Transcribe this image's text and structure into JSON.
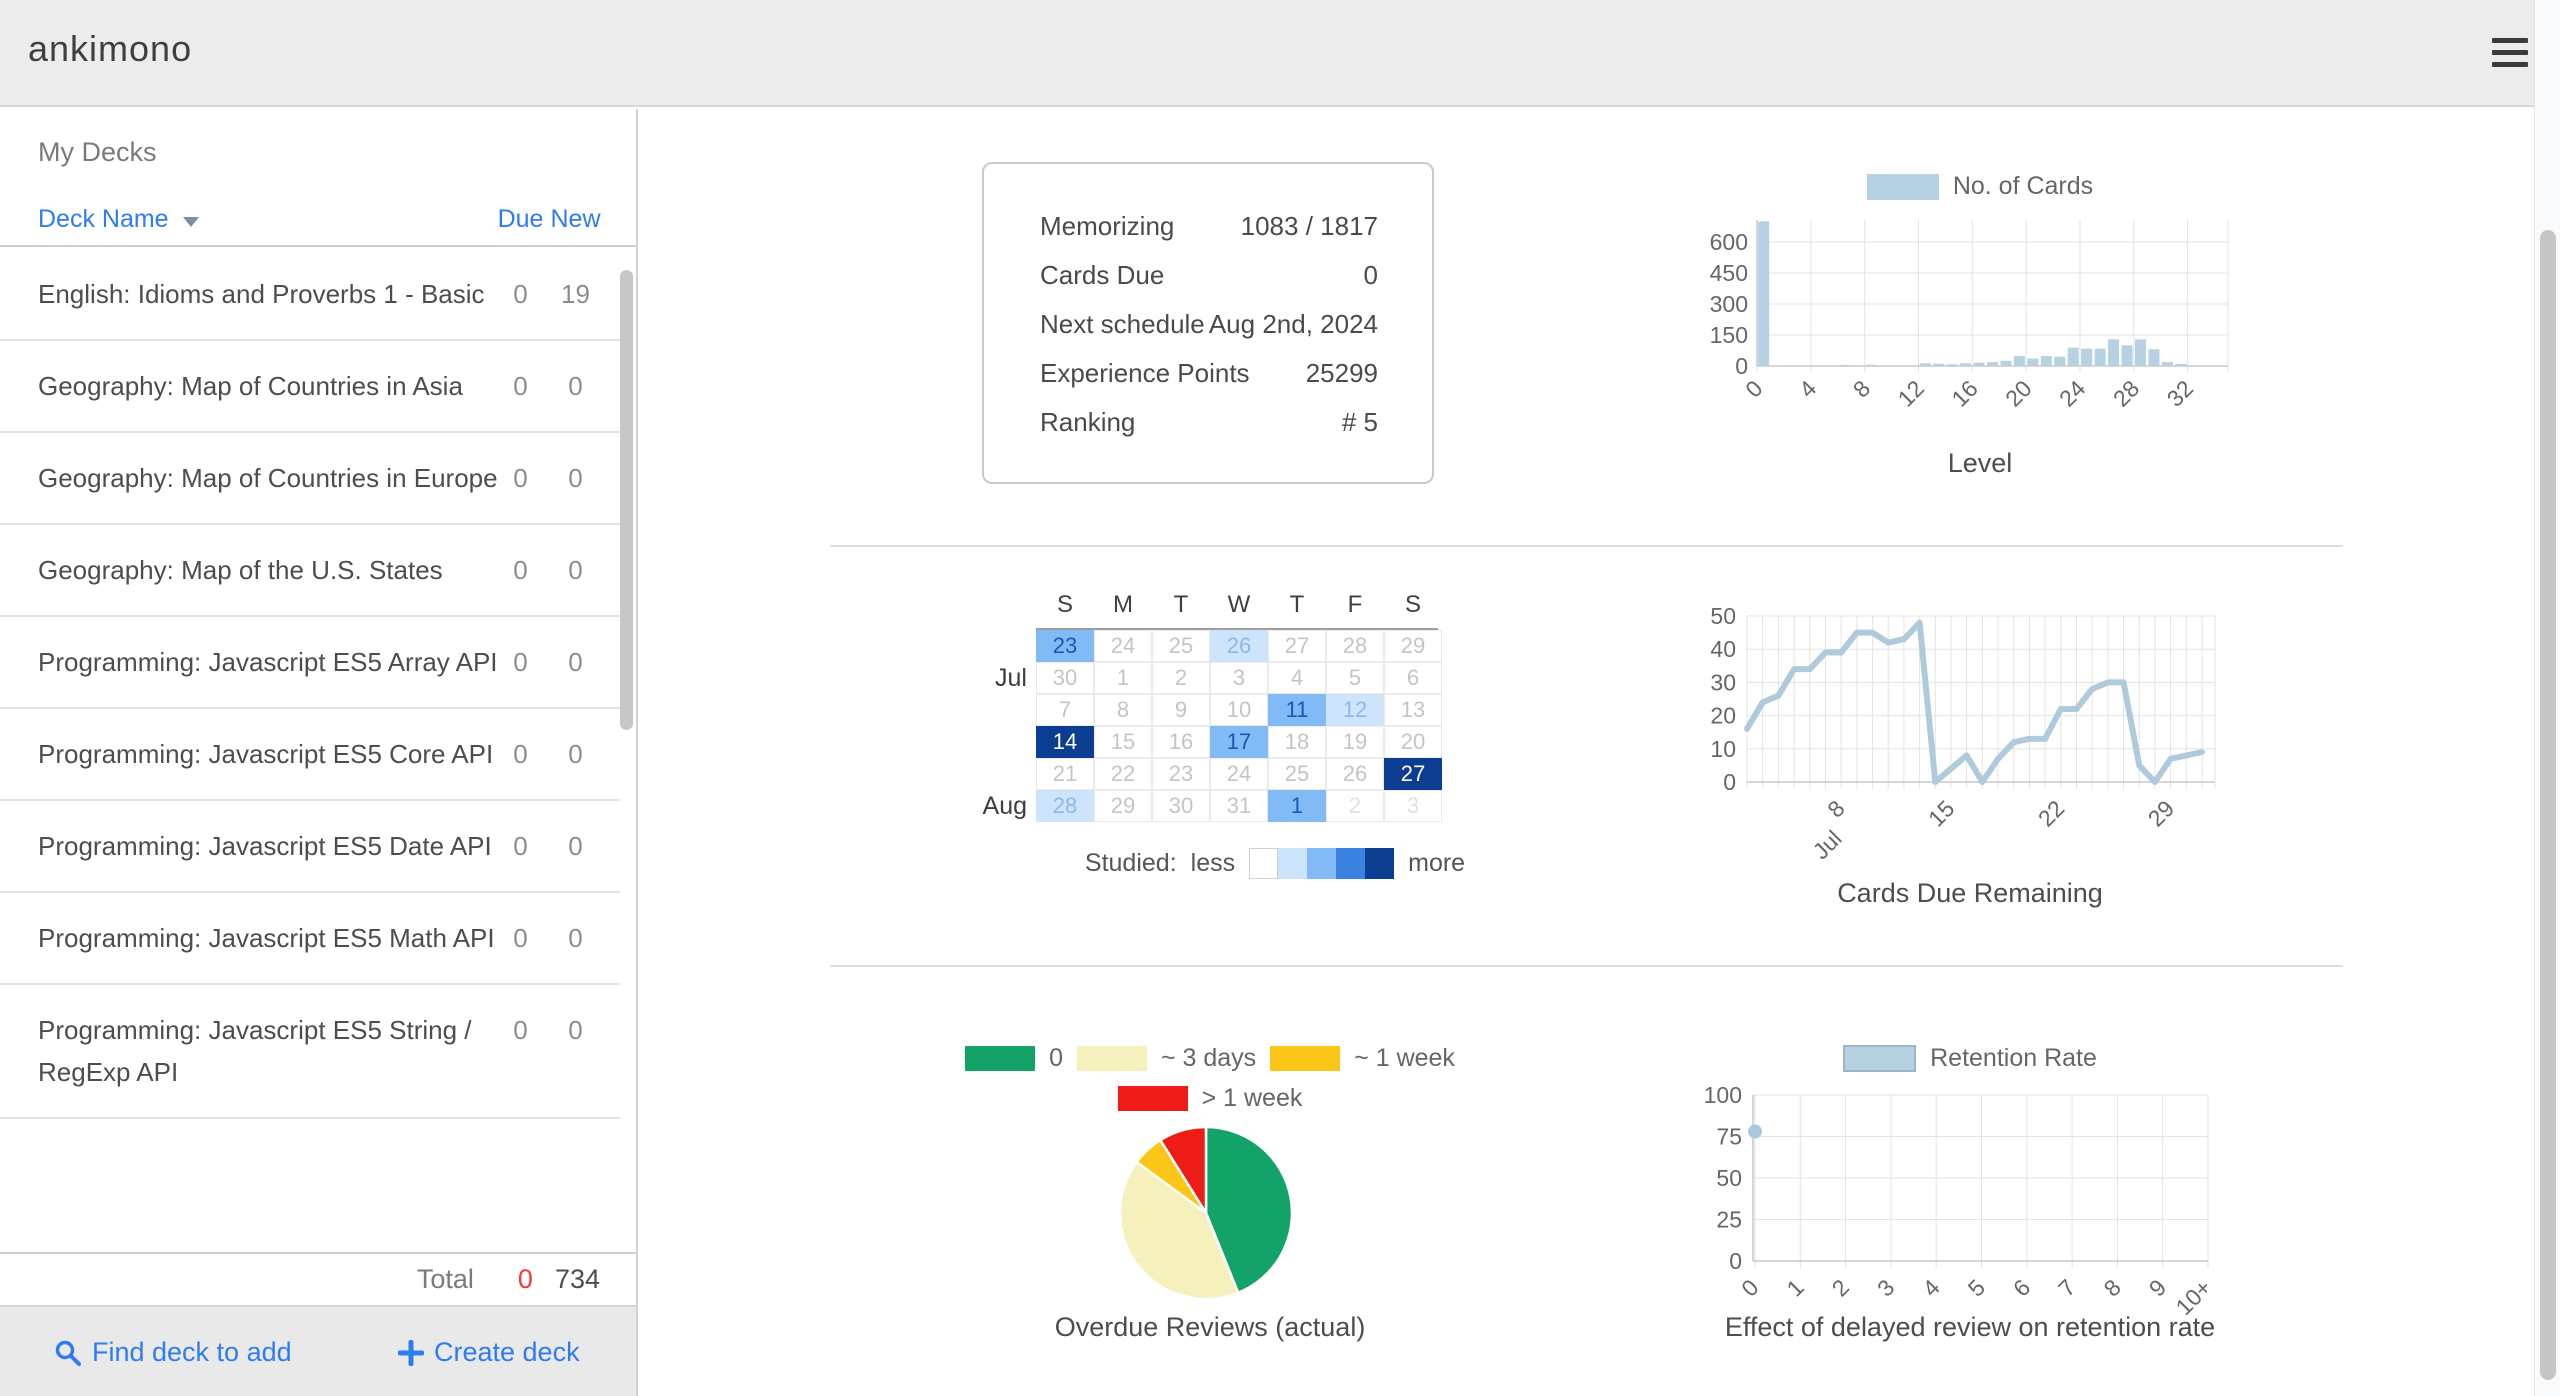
{
  "header": {
    "logo": "ankimono"
  },
  "sidebar": {
    "title": "My Decks",
    "sort_label": "Deck Name",
    "columns": {
      "due": "Due",
      "new": "New"
    },
    "decks": [
      {
        "name": "English: Idioms and Proverbs 1 - Basic",
        "due": "0",
        "new": "19"
      },
      {
        "name": "Geography: Map of Countries in Asia",
        "due": "0",
        "new": "0"
      },
      {
        "name": "Geography: Map of Countries in Europe",
        "due": "0",
        "new": "0"
      },
      {
        "name": "Geography: Map of the U.S. States",
        "due": "0",
        "new": "0"
      },
      {
        "name": "Programming: Javascript ES5 Array API",
        "due": "0",
        "new": "0"
      },
      {
        "name": "Programming: Javascript ES5 Core API",
        "due": "0",
        "new": "0"
      },
      {
        "name": "Programming: Javascript ES5 Date API",
        "due": "0",
        "new": "0"
      },
      {
        "name": "Programming: Javascript ES5 Math API",
        "due": "0",
        "new": "0"
      },
      {
        "name": "Programming: Javascript ES5 String / RegExp API",
        "due": "0",
        "new": "0"
      }
    ],
    "total": {
      "label": "Total",
      "due": "0",
      "new": "734"
    },
    "actions": {
      "find": "Find deck to add",
      "create": "Create deck"
    }
  },
  "stats": {
    "rows": [
      {
        "label": "Memorizing",
        "value": "1083 / 1817"
      },
      {
        "label": "Cards Due",
        "value": "0"
      },
      {
        "label": "Next schedule",
        "value": "Aug 2nd, 2024"
      },
      {
        "label": "Experience Points",
        "value": "25299"
      },
      {
        "label": "Ranking",
        "value": "# 5"
      }
    ]
  },
  "chart_data": [
    {
      "id": "cards_per_level",
      "type": "bar",
      "legend": "No. of Cards",
      "xlabel": "Level",
      "bar_color": "#b5d1e2",
      "x_ticks": [
        0,
        4,
        8,
        12,
        16,
        20,
        24,
        28,
        32
      ],
      "y_ticks": [
        0,
        150,
        300,
        450,
        600
      ],
      "ylim": [
        0,
        700
      ],
      "values": [
        700,
        0,
        0,
        0,
        0,
        0,
        5,
        0,
        6,
        0,
        0,
        3,
        13,
        11,
        8,
        13,
        16,
        19,
        25,
        48,
        36,
        48,
        45,
        89,
        84,
        84,
        129,
        100,
        129,
        81,
        19,
        10,
        0,
        3,
        2
      ]
    },
    {
      "id": "study_heatmap",
      "type": "heatmap",
      "day_headers": [
        "S",
        "M",
        "T",
        "W",
        "T",
        "F",
        "S"
      ],
      "month_labels": [
        {
          "text": "Jul",
          "row": 1
        },
        {
          "text": "Aug",
          "row": 5
        }
      ],
      "weeks": [
        [
          {
            "d": "23",
            "lvl": 2
          },
          {
            "d": "24",
            "lvl": 0
          },
          {
            "d": "25",
            "lvl": 0
          },
          {
            "d": "26",
            "lvl": 1
          },
          {
            "d": "27",
            "lvl": 0
          },
          {
            "d": "28",
            "lvl": 0
          },
          {
            "d": "29",
            "lvl": 0
          }
        ],
        [
          {
            "d": "30",
            "lvl": 0
          },
          {
            "d": "1",
            "lvl": 0
          },
          {
            "d": "2",
            "lvl": 0
          },
          {
            "d": "3",
            "lvl": 0
          },
          {
            "d": "4",
            "lvl": 0
          },
          {
            "d": "5",
            "lvl": 0
          },
          {
            "d": "6",
            "lvl": 0
          }
        ],
        [
          {
            "d": "7",
            "lvl": 0
          },
          {
            "d": "8",
            "lvl": 0
          },
          {
            "d": "9",
            "lvl": 0
          },
          {
            "d": "10",
            "lvl": 0
          },
          {
            "d": "11",
            "lvl": 2
          },
          {
            "d": "12",
            "lvl": 1
          },
          {
            "d": "13",
            "lvl": 0
          }
        ],
        [
          {
            "d": "14",
            "lvl": 4
          },
          {
            "d": "15",
            "lvl": 0
          },
          {
            "d": "16",
            "lvl": 0
          },
          {
            "d": "17",
            "lvl": 2
          },
          {
            "d": "18",
            "lvl": 0
          },
          {
            "d": "19",
            "lvl": 0
          },
          {
            "d": "20",
            "lvl": 0
          }
        ],
        [
          {
            "d": "21",
            "lvl": 0
          },
          {
            "d": "22",
            "lvl": 0
          },
          {
            "d": "23",
            "lvl": 0
          },
          {
            "d": "24",
            "lvl": 0
          },
          {
            "d": "25",
            "lvl": 0
          },
          {
            "d": "26",
            "lvl": 0
          },
          {
            "d": "27",
            "lvl": 4
          }
        ],
        [
          {
            "d": "28",
            "lvl": 1
          },
          {
            "d": "29",
            "lvl": 0
          },
          {
            "d": "30",
            "lvl": 0
          },
          {
            "d": "31",
            "lvl": 0
          },
          {
            "d": "1",
            "lvl": 2
          },
          {
            "d": "2",
            "lvl": 0,
            "dim": true
          },
          {
            "d": "3",
            "lvl": 0,
            "dim": true
          }
        ]
      ],
      "legend": {
        "label": "Studied:",
        "less": "less",
        "more": "more",
        "colors": [
          "#ffffff",
          "#cde4fb",
          "#82baf5",
          "#3b82e0",
          "#0b3d91"
        ]
      }
    },
    {
      "id": "cards_due_remaining",
      "type": "line",
      "title": "Cards Due Remaining",
      "color": "#aecadb",
      "month_label": "Jul",
      "x_start_day": 2,
      "x_ticks": [
        8,
        15,
        22,
        29
      ],
      "y_ticks": [
        0,
        10,
        20,
        30,
        40,
        50
      ],
      "ylim": [
        0,
        50
      ],
      "values": [
        16,
        24,
        26,
        34,
        34,
        39,
        39,
        45,
        45,
        42,
        43,
        48,
        0,
        4,
        8,
        0,
        7,
        12,
        13,
        13,
        22,
        22,
        28,
        30,
        30,
        5,
        0,
        7,
        8,
        9
      ]
    },
    {
      "id": "overdue_reviews",
      "type": "pie",
      "title": "Overdue Reviews (actual)",
      "slices": [
        {
          "label": "0",
          "percent": 43.9,
          "color": "#13a368"
        },
        {
          "label": "~ 3 days",
          "percent": 41.2,
          "color": "#f5f0bc"
        },
        {
          "label": "~ 1 week",
          "percent": 6.0,
          "color": "#fbc617"
        },
        {
          "label": "> 1 week",
          "percent": 8.9,
          "color": "#ed1c16"
        }
      ]
    },
    {
      "id": "retention_rate",
      "type": "scatter",
      "title": "Effect of delayed review on retention rate",
      "legend": "Retention Rate",
      "point_color": "#a9c9dd",
      "swatch_color": "#b5d2e3",
      "x_ticks": [
        "0",
        "1",
        "2",
        "3",
        "4",
        "5",
        "6",
        "7",
        "8",
        "9",
        "10+"
      ],
      "y_ticks": [
        0,
        25,
        50,
        75,
        100
      ],
      "ylim": [
        0,
        100
      ],
      "points": [
        {
          "x": 0,
          "y": 78
        }
      ]
    }
  ]
}
